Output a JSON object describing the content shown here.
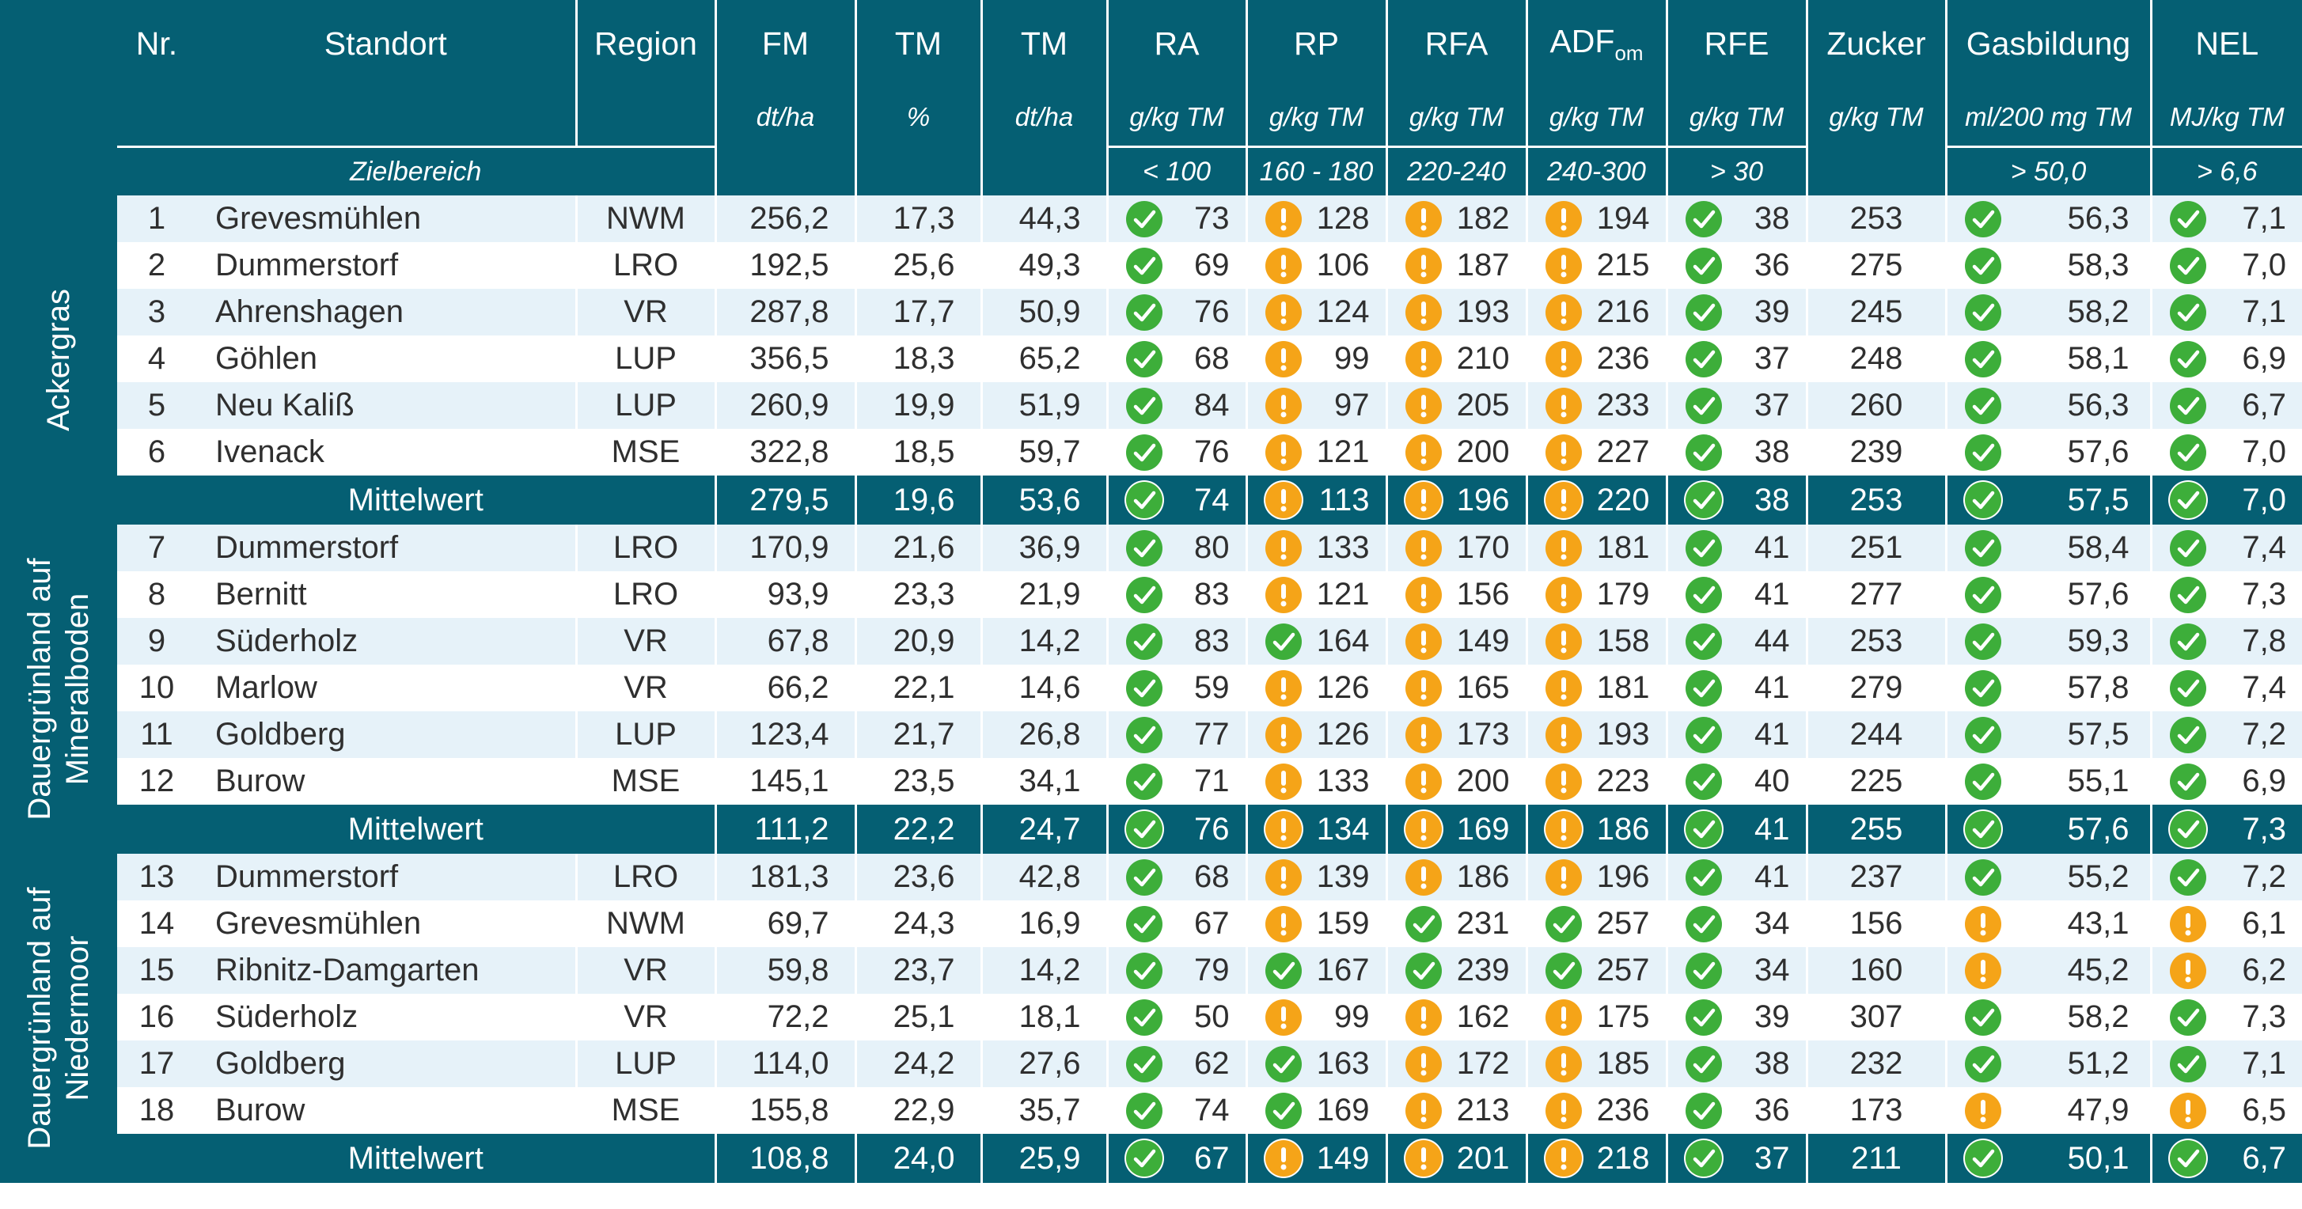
{
  "headers": {
    "nr": "Nr.",
    "standort": "Standort",
    "region": "Region",
    "fm": "FM",
    "tm1": "TM",
    "tm2": "TM",
    "ra": "RA",
    "rp": "RP",
    "rfa": "RFA",
    "adf_main": "ADF",
    "adf_sub": "om",
    "rfe": "RFE",
    "zucker": "Zucker",
    "gas": "Gasbildung",
    "nel": "NEL"
  },
  "units": {
    "fm": "dt/ha",
    "tm1": "%",
    "tm2": "dt/ha",
    "ra": "g/kg TM",
    "rp": "g/kg TM",
    "rfa": "g/kg TM",
    "adf": "g/kg TM",
    "rfe": "g/kg TM",
    "zucker": "g/kg TM",
    "gas": "ml/200 mg TM",
    "nel": "MJ/kg TM"
  },
  "target": {
    "label": "Zielbereich",
    "ra": "< 100",
    "rp": "160 - 180",
    "rfa": "220-240",
    "adf": "240-300",
    "rfe": "> 30",
    "gas": "> 50,0",
    "nel": "> 6,6"
  },
  "groups": [
    {
      "label_lines": [
        "Ackergras"
      ],
      "rows": [
        {
          "nr": "1",
          "standort": "Grevesmühlen",
          "region": "NWM",
          "fm": "256,2",
          "tm1": "17,3",
          "tm2": "44,3",
          "ra": "73",
          "ra_s": "ok",
          "rp": "128",
          "rp_s": "warn",
          "rfa": "182",
          "rfa_s": "warn",
          "adf": "194",
          "adf_s": "warn",
          "rfe": "38",
          "rfe_s": "ok",
          "zucker": "253",
          "gas": "56,3",
          "gas_s": "ok",
          "nel": "7,1",
          "nel_s": "ok"
        },
        {
          "nr": "2",
          "standort": "Dummerstorf",
          "region": "LRO",
          "fm": "192,5",
          "tm1": "25,6",
          "tm2": "49,3",
          "ra": "69",
          "ra_s": "ok",
          "rp": "106",
          "rp_s": "warn",
          "rfa": "187",
          "rfa_s": "warn",
          "adf": "215",
          "adf_s": "warn",
          "rfe": "36",
          "rfe_s": "ok",
          "zucker": "275",
          "gas": "58,3",
          "gas_s": "ok",
          "nel": "7,0",
          "nel_s": "ok"
        },
        {
          "nr": "3",
          "standort": "Ahrenshagen",
          "region": "VR",
          "fm": "287,8",
          "tm1": "17,7",
          "tm2": "50,9",
          "ra": "76",
          "ra_s": "ok",
          "rp": "124",
          "rp_s": "warn",
          "rfa": "193",
          "rfa_s": "warn",
          "adf": "216",
          "adf_s": "warn",
          "rfe": "39",
          "rfe_s": "ok",
          "zucker": "245",
          "gas": "58,2",
          "gas_s": "ok",
          "nel": "7,1",
          "nel_s": "ok"
        },
        {
          "nr": "4",
          "standort": "Göhlen",
          "region": "LUP",
          "fm": "356,5",
          "tm1": "18,3",
          "tm2": "65,2",
          "ra": "68",
          "ra_s": "ok",
          "rp": "99",
          "rp_s": "warn",
          "rfa": "210",
          "rfa_s": "warn",
          "adf": "236",
          "adf_s": "warn",
          "rfe": "37",
          "rfe_s": "ok",
          "zucker": "248",
          "gas": "58,1",
          "gas_s": "ok",
          "nel": "6,9",
          "nel_s": "ok"
        },
        {
          "nr": "5",
          "standort": "Neu Kaliß",
          "region": "LUP",
          "fm": "260,9",
          "tm1": "19,9",
          "tm2": "51,9",
          "ra": "84",
          "ra_s": "ok",
          "rp": "97",
          "rp_s": "warn",
          "rfa": "205",
          "rfa_s": "warn",
          "adf": "233",
          "adf_s": "warn",
          "rfe": "37",
          "rfe_s": "ok",
          "zucker": "260",
          "gas": "56,3",
          "gas_s": "ok",
          "nel": "6,7",
          "nel_s": "ok"
        },
        {
          "nr": "6",
          "standort": "Ivenack",
          "region": "MSE",
          "fm": "322,8",
          "tm1": "18,5",
          "tm2": "59,7",
          "ra": "76",
          "ra_s": "ok",
          "rp": "121",
          "rp_s": "warn",
          "rfa": "200",
          "rfa_s": "warn",
          "adf": "227",
          "adf_s": "warn",
          "rfe": "38",
          "rfe_s": "ok",
          "zucker": "239",
          "gas": "57,6",
          "gas_s": "ok",
          "nel": "7,0",
          "nel_s": "ok"
        }
      ],
      "mean": {
        "label": "Mittelwert",
        "fm": "279,5",
        "tm1": "19,6",
        "tm2": "53,6",
        "ra": "74",
        "ra_s": "ok",
        "rp": "113",
        "rp_s": "warn",
        "rfa": "196",
        "rfa_s": "warn",
        "adf": "220",
        "adf_s": "warn",
        "rfe": "38",
        "rfe_s": "ok",
        "zucker": "253",
        "gas": "57,5",
        "gas_s": "ok",
        "nel": "7,0",
        "nel_s": "ok"
      }
    },
    {
      "label_lines": [
        "Dauergrünland auf",
        "Mineralboden"
      ],
      "rows": [
        {
          "nr": "7",
          "standort": "Dummerstorf",
          "region": "LRO",
          "fm": "170,9",
          "tm1": "21,6",
          "tm2": "36,9",
          "ra": "80",
          "ra_s": "ok",
          "rp": "133",
          "rp_s": "warn",
          "rfa": "170",
          "rfa_s": "warn",
          "adf": "181",
          "adf_s": "warn",
          "rfe": "41",
          "rfe_s": "ok",
          "zucker": "251",
          "gas": "58,4",
          "gas_s": "ok",
          "nel": "7,4",
          "nel_s": "ok"
        },
        {
          "nr": "8",
          "standort": "Bernitt",
          "region": "LRO",
          "fm": "93,9",
          "tm1": "23,3",
          "tm2": "21,9",
          "ra": "83",
          "ra_s": "ok",
          "rp": "121",
          "rp_s": "warn",
          "rfa": "156",
          "rfa_s": "warn",
          "adf": "179",
          "adf_s": "warn",
          "rfe": "41",
          "rfe_s": "ok",
          "zucker": "277",
          "gas": "57,6",
          "gas_s": "ok",
          "nel": "7,3",
          "nel_s": "ok"
        },
        {
          "nr": "9",
          "standort": "Süderholz",
          "region": "VR",
          "fm": "67,8",
          "tm1": "20,9",
          "tm2": "14,2",
          "ra": "83",
          "ra_s": "ok",
          "rp": "164",
          "rp_s": "ok",
          "rfa": "149",
          "rfa_s": "warn",
          "adf": "158",
          "adf_s": "warn",
          "rfe": "44",
          "rfe_s": "ok",
          "zucker": "253",
          "gas": "59,3",
          "gas_s": "ok",
          "nel": "7,8",
          "nel_s": "ok"
        },
        {
          "nr": "10",
          "standort": "Marlow",
          "region": "VR",
          "fm": "66,2",
          "tm1": "22,1",
          "tm2": "14,6",
          "ra": "59",
          "ra_s": "ok",
          "rp": "126",
          "rp_s": "warn",
          "rfa": "165",
          "rfa_s": "warn",
          "adf": "181",
          "adf_s": "warn",
          "rfe": "41",
          "rfe_s": "ok",
          "zucker": "279",
          "gas": "57,8",
          "gas_s": "ok",
          "nel": "7,4",
          "nel_s": "ok"
        },
        {
          "nr": "11",
          "standort": "Goldberg",
          "region": "LUP",
          "fm": "123,4",
          "tm1": "21,7",
          "tm2": "26,8",
          "ra": "77",
          "ra_s": "ok",
          "rp": "126",
          "rp_s": "warn",
          "rfa": "173",
          "rfa_s": "warn",
          "adf": "193",
          "adf_s": "warn",
          "rfe": "41",
          "rfe_s": "ok",
          "zucker": "244",
          "gas": "57,5",
          "gas_s": "ok",
          "nel": "7,2",
          "nel_s": "ok"
        },
        {
          "nr": "12",
          "standort": "Burow",
          "region": "MSE",
          "fm": "145,1",
          "tm1": "23,5",
          "tm2": "34,1",
          "ra": "71",
          "ra_s": "ok",
          "rp": "133",
          "rp_s": "warn",
          "rfa": "200",
          "rfa_s": "warn",
          "adf": "223",
          "adf_s": "warn",
          "rfe": "40",
          "rfe_s": "ok",
          "zucker": "225",
          "gas": "55,1",
          "gas_s": "ok",
          "nel": "6,9",
          "nel_s": "ok"
        }
      ],
      "mean": {
        "label": "Mittelwert",
        "fm": "111,2",
        "tm1": "22,2",
        "tm2": "24,7",
        "ra": "76",
        "ra_s": "ok",
        "rp": "134",
        "rp_s": "warn",
        "rfa": "169",
        "rfa_s": "warn",
        "adf": "186",
        "adf_s": "warn",
        "rfe": "41",
        "rfe_s": "ok",
        "zucker": "255",
        "gas": "57,6",
        "gas_s": "ok",
        "nel": "7,3",
        "nel_s": "ok"
      }
    },
    {
      "label_lines": [
        "Dauergrünland auf",
        "Niedermoor"
      ],
      "rows": [
        {
          "nr": "13",
          "standort": "Dummerstorf",
          "region": "LRO",
          "fm": "181,3",
          "tm1": "23,6",
          "tm2": "42,8",
          "ra": "68",
          "ra_s": "ok",
          "rp": "139",
          "rp_s": "warn",
          "rfa": "186",
          "rfa_s": "warn",
          "adf": "196",
          "adf_s": "warn",
          "rfe": "41",
          "rfe_s": "ok",
          "zucker": "237",
          "gas": "55,2",
          "gas_s": "ok",
          "nel": "7,2",
          "nel_s": "ok"
        },
        {
          "nr": "14",
          "standort": "Grevesmühlen",
          "region": "NWM",
          "fm": "69,7",
          "tm1": "24,3",
          "tm2": "16,9",
          "ra": "67",
          "ra_s": "ok",
          "rp": "159",
          "rp_s": "warn",
          "rfa": "231",
          "rfa_s": "ok",
          "adf": "257",
          "adf_s": "ok",
          "rfe": "34",
          "rfe_s": "ok",
          "zucker": "156",
          "gas": "43,1",
          "gas_s": "warn",
          "nel": "6,1",
          "nel_s": "warn"
        },
        {
          "nr": "15",
          "standort": "Ribnitz-Damgarten",
          "region": "VR",
          "fm": "59,8",
          "tm1": "23,7",
          "tm2": "14,2",
          "ra": "79",
          "ra_s": "ok",
          "rp": "167",
          "rp_s": "ok",
          "rfa": "239",
          "rfa_s": "ok",
          "adf": "257",
          "adf_s": "ok",
          "rfe": "34",
          "rfe_s": "ok",
          "zucker": "160",
          "gas": "45,2",
          "gas_s": "warn",
          "nel": "6,2",
          "nel_s": "warn"
        },
        {
          "nr": "16",
          "standort": "Süderholz",
          "region": "VR",
          "fm": "72,2",
          "tm1": "25,1",
          "tm2": "18,1",
          "ra": "50",
          "ra_s": "ok",
          "rp": "99",
          "rp_s": "warn",
          "rfa": "162",
          "rfa_s": "warn",
          "adf": "175",
          "adf_s": "warn",
          "rfe": "39",
          "rfe_s": "ok",
          "zucker": "307",
          "gas": "58,2",
          "gas_s": "ok",
          "nel": "7,3",
          "nel_s": "ok"
        },
        {
          "nr": "17",
          "standort": "Goldberg",
          "region": "LUP",
          "fm": "114,0",
          "tm1": "24,2",
          "tm2": "27,6",
          "ra": "62",
          "ra_s": "ok",
          "rp": "163",
          "rp_s": "ok",
          "rfa": "172",
          "rfa_s": "warn",
          "adf": "185",
          "adf_s": "warn",
          "rfe": "38",
          "rfe_s": "ok",
          "zucker": "232",
          "gas": "51,2",
          "gas_s": "ok",
          "nel": "7,1",
          "nel_s": "ok"
        },
        {
          "nr": "18",
          "standort": "Burow",
          "region": "MSE",
          "fm": "155,8",
          "tm1": "22,9",
          "tm2": "35,7",
          "ra": "74",
          "ra_s": "ok",
          "rp": "169",
          "rp_s": "ok",
          "rfa": "213",
          "rfa_s": "warn",
          "adf": "236",
          "adf_s": "warn",
          "rfe": "36",
          "rfe_s": "ok",
          "zucker": "173",
          "gas": "47,9",
          "gas_s": "warn",
          "nel": "6,5",
          "nel_s": "warn"
        }
      ],
      "mean": {
        "label": "Mittelwert",
        "fm": "108,8",
        "tm1": "24,0",
        "tm2": "25,9",
        "ra": "67",
        "ra_s": "ok",
        "rp": "149",
        "rp_s": "warn",
        "rfa": "201",
        "rfa_s": "warn",
        "adf": "218",
        "adf_s": "warn",
        "rfe": "37",
        "rfe_s": "ok",
        "zucker": "211",
        "gas": "50,1",
        "gas_s": "ok",
        "nel": "6,7",
        "nel_s": "ok"
      }
    }
  ],
  "colors": {
    "header_bg": "#055f73",
    "row_alt": "#e6f2f9",
    "ok": "#3dae3a",
    "warn": "#f5a418"
  },
  "icons": {
    "ok": "check-icon",
    "warn": "exclamation-icon"
  }
}
